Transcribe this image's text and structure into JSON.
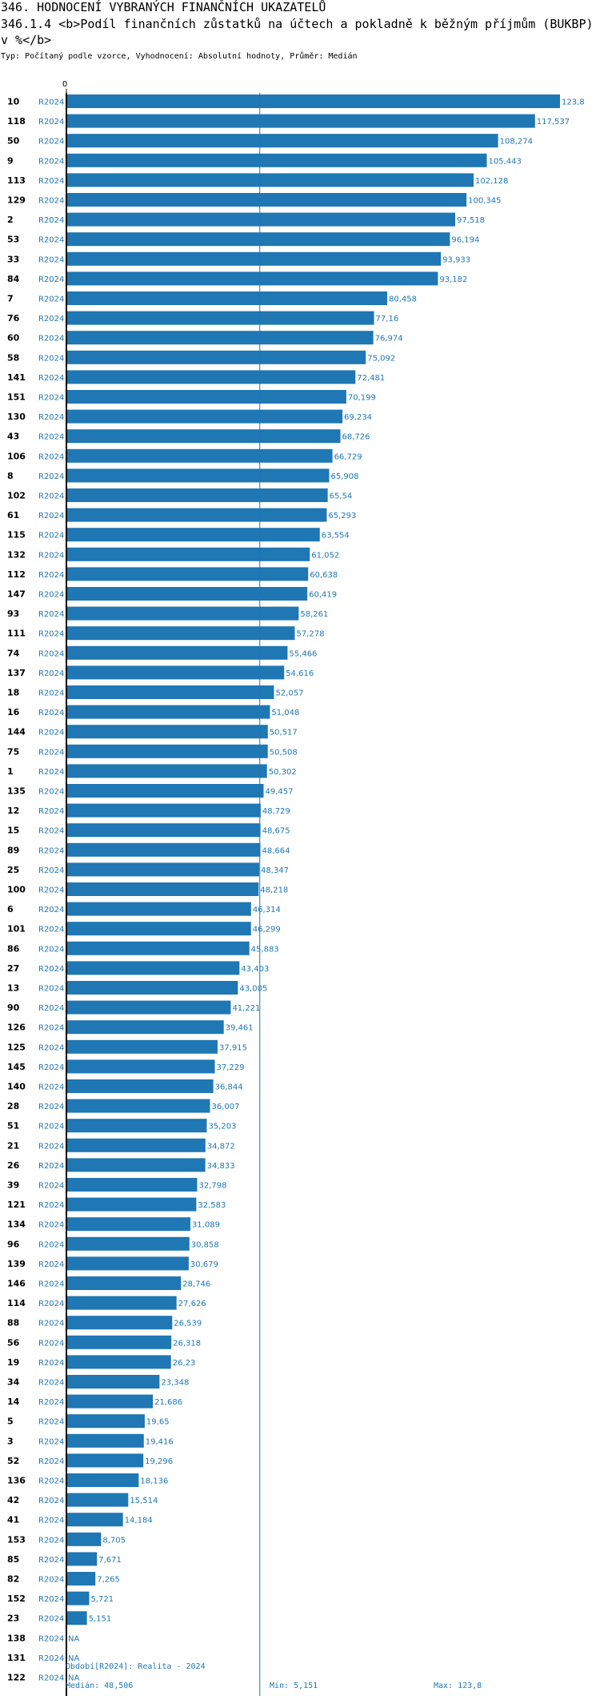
{
  "header": {
    "title": "346. HODNOCENÍ VYBRANÝCH FINANČNÍCH UKAZATELŮ",
    "subtitle": "346.1.4 <b>Podíl finančních zůstatků na účtech a pokladně k běžným příjmům (BUKBP) v %</b>",
    "type_line": "Typ: Počítaný podle vzorce, Vyhodnocení: Absolutní hodnoty, Průměr: Medián"
  },
  "chart_data": {
    "type": "bar",
    "orientation": "horizontal",
    "period": "R2024",
    "axis_zero_label": "0",
    "xlim": [
      0,
      123.8
    ],
    "median": 48.506,
    "categories": [
      "10",
      "118",
      "50",
      "9",
      "113",
      "129",
      "2",
      "53",
      "33",
      "84",
      "7",
      "76",
      "60",
      "58",
      "141",
      "151",
      "130",
      "43",
      "106",
      "8",
      "102",
      "61",
      "115",
      "132",
      "112",
      "147",
      "93",
      "111",
      "74",
      "137",
      "18",
      "16",
      "144",
      "75",
      "1",
      "135",
      "12",
      "15",
      "89",
      "25",
      "100",
      "6",
      "101",
      "86",
      "27",
      "13",
      "90",
      "126",
      "125",
      "145",
      "140",
      "28",
      "51",
      "21",
      "26",
      "39",
      "121",
      "134",
      "96",
      "139",
      "146",
      "114",
      "88",
      "56",
      "19",
      "34",
      "14",
      "5",
      "3",
      "52",
      "136",
      "42",
      "41",
      "153",
      "85",
      "82",
      "152",
      "23",
      "138",
      "131",
      "122"
    ],
    "values": [
      123.8,
      117.537,
      108.274,
      105.443,
      102.128,
      100.345,
      97.518,
      96.194,
      93.933,
      93.182,
      80.458,
      77.16,
      76.974,
      75.092,
      72.481,
      70.199,
      69.234,
      68.726,
      66.729,
      65.908,
      65.54,
      65.293,
      63.554,
      61.052,
      60.638,
      60.419,
      58.261,
      57.278,
      55.466,
      54.616,
      52.057,
      51.048,
      50.517,
      50.508,
      50.302,
      49.457,
      48.729,
      48.675,
      48.664,
      48.347,
      48.218,
      46.314,
      46.299,
      45.883,
      43.403,
      43.005,
      41.221,
      39.461,
      37.915,
      37.229,
      36.844,
      36.007,
      35.203,
      34.872,
      34.833,
      32.798,
      32.583,
      31.089,
      30.858,
      30.679,
      28.746,
      27.626,
      26.539,
      26.318,
      26.23,
      23.348,
      21.686,
      19.65,
      19.416,
      19.296,
      18.136,
      15.514,
      14.184,
      8.705,
      7.671,
      7.265,
      5.721,
      5.151,
      null,
      null,
      null
    ],
    "value_labels": [
      "123,8",
      "117,537",
      "108,274",
      "105,443",
      "102,128",
      "100,345",
      "97,518",
      "96,194",
      "93,933",
      "93,182",
      "80,458",
      "77,16",
      "76,974",
      "75,092",
      "72,481",
      "70,199",
      "69,234",
      "68,726",
      "66,729",
      "65,908",
      "65,54",
      "65,293",
      "63,554",
      "61,052",
      "60,638",
      "60,419",
      "58,261",
      "57,278",
      "55,466",
      "54,616",
      "52,057",
      "51,048",
      "50,517",
      "50,508",
      "50,302",
      "49,457",
      "48,729",
      "48,675",
      "48,664",
      "48,347",
      "48,218",
      "46,314",
      "46,299",
      "45,883",
      "43,403",
      "43,005",
      "41,221",
      "39,461",
      "37,915",
      "37,229",
      "36,844",
      "36,007",
      "35,203",
      "34,872",
      "34,833",
      "32,798",
      "32,583",
      "31,089",
      "30,858",
      "30,679",
      "28,746",
      "27,626",
      "26,539",
      "26,318",
      "26,23",
      "23,348",
      "21,686",
      "19,65",
      "19,416",
      "19,296",
      "18,136",
      "15,514",
      "14,184",
      "8,705",
      "7,671",
      "7,265",
      "5,721",
      "5,151",
      "NA",
      "NA",
      "NA"
    ],
    "bar_color": "#1f77b4",
    "grid": false
  },
  "footer": {
    "period_line": "Období[R2024]: Realita - 2024",
    "median_label": "Medián: 48,506",
    "min_label": "Min: 5,151",
    "max_label": "Max: 123,8"
  }
}
